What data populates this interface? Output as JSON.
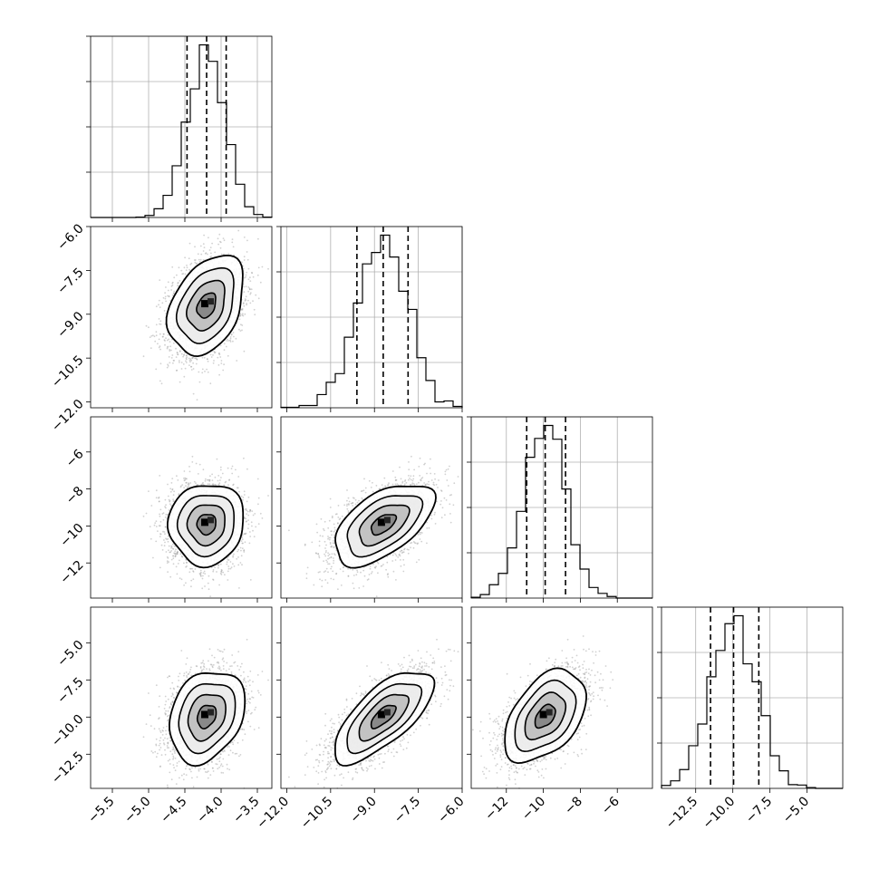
{
  "chart_data": {
    "type": "corner",
    "title": "",
    "grid": true,
    "colors": {
      "points": "#9a9a9a",
      "density": "#000000",
      "frame": "#000000",
      "grid": "#b0b0b0",
      "background": "#ffffff"
    },
    "params": [
      {
        "range": [
          -5.8,
          -3.3
        ],
        "mean": -4.2,
        "sd": 0.26,
        "q": [
          -4.47,
          -4.2,
          -3.93
        ],
        "ticks": [
          -5.5,
          -5.0,
          -4.5,
          -4.0,
          -3.5
        ],
        "tick_labels": [
          "-5.5",
          "-5.0",
          "-4.5",
          "-4.0",
          "-3.5"
        ]
      },
      {
        "range": [
          -12.2,
          -6.0
        ],
        "mean": -8.7,
        "sd": 0.85,
        "q": [
          -9.6,
          -8.7,
          -7.85
        ],
        "ticks": [
          -12.0,
          -10.5,
          -9.0,
          -7.5,
          -6.0
        ],
        "tick_labels": [
          "-12.0",
          "-10.5",
          "-9.0",
          "-7.5",
          "-6.0"
        ]
      },
      {
        "range": [
          -13.9,
          -4.1
        ],
        "mean": -9.9,
        "sd": 1.1,
        "q": [
          -10.9,
          -9.9,
          -8.8
        ],
        "ticks": [
          -12,
          -10,
          -8,
          -6
        ],
        "tick_labels": [
          "-12",
          "-10",
          "-8",
          "-6"
        ]
      },
      {
        "range": [
          -14.8,
          -2.6
        ],
        "mean": -9.95,
        "sd": 1.55,
        "q": [
          -11.5,
          -9.95,
          -8.25
        ],
        "ticks": [
          -12.5,
          -10.0,
          -7.5,
          -5.0
        ],
        "tick_labels": [
          "-12.5",
          "-10.0",
          "-7.5",
          "-5.0"
        ]
      }
    ],
    "correlations": [
      {
        "pair": [
          0,
          1
        ],
        "rho": 0.35
      },
      {
        "pair": [
          0,
          2
        ],
        "rho": 0.05
      },
      {
        "pair": [
          1,
          2
        ],
        "rho": 0.55
      },
      {
        "pair": [
          0,
          3
        ],
        "rho": 0.25
      },
      {
        "pair": [
          1,
          3
        ],
        "rho": 0.7
      },
      {
        "pair": [
          2,
          3
        ],
        "rho": 0.45
      }
    ],
    "quantiles": [
      0.16,
      0.5,
      0.84
    ],
    "histogram_bins": 20,
    "contour_levels_sigma": [
      0.5,
      1.0,
      1.5,
      2.0
    ],
    "grid_spec": {
      "rows": 4,
      "cols": 4,
      "lower_triangle": true
    }
  }
}
